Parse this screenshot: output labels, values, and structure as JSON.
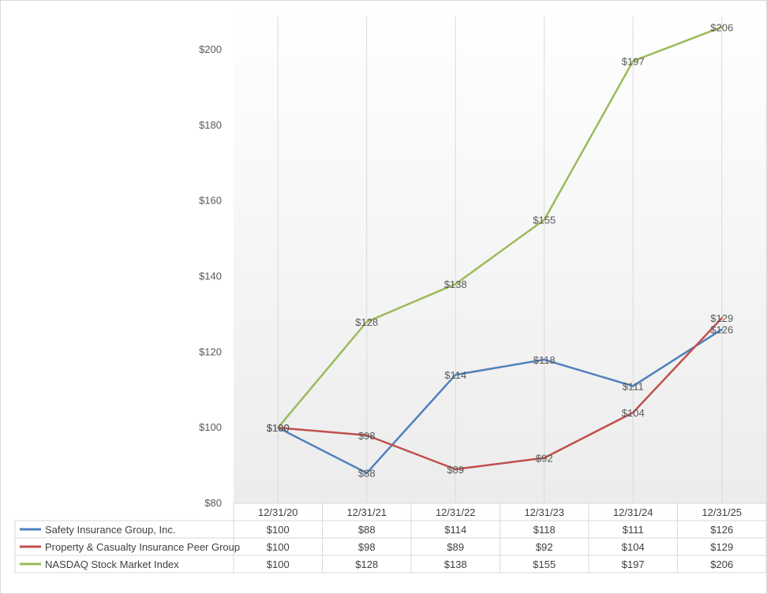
{
  "chart_data": {
    "type": "line",
    "categories": [
      "12/31/20",
      "12/31/21",
      "12/31/22",
      "12/31/23",
      "12/31/24",
      "12/31/25"
    ],
    "series": [
      {
        "name": "Safety Insurance Group, Inc.",
        "color": "#4f81bd",
        "values": [
          100,
          88,
          114,
          118,
          111,
          126
        ],
        "labels": [
          "$100",
          "$88",
          "$114",
          "$118",
          "$111",
          "$126"
        ]
      },
      {
        "name": "Property & Casualty Insurance Peer Group",
        "color": "#c0504d",
        "values": [
          100,
          98,
          89,
          92,
          104,
          129
        ],
        "labels": [
          "$100",
          "$98",
          "$89",
          "$92",
          "$104",
          "$129"
        ]
      },
      {
        "name": "NASDAQ Stock Market Index",
        "color": "#9bbb59",
        "values": [
          100,
          128,
          138,
          155,
          197,
          206
        ],
        "labels": [
          "$100",
          "$128",
          "$138",
          "$155",
          "$197",
          "$206"
        ]
      }
    ],
    "ylim": [
      80,
      200
    ],
    "yticks": [
      80,
      100,
      120,
      140,
      160,
      180,
      200
    ],
    "ytick_labels": [
      "$80",
      "$100",
      "$120",
      "$140",
      "$160",
      "$180",
      "$200"
    ],
    "title": "",
    "xlabel": "",
    "ylabel": "",
    "grid": "vertical",
    "legend": "data-table-below"
  }
}
